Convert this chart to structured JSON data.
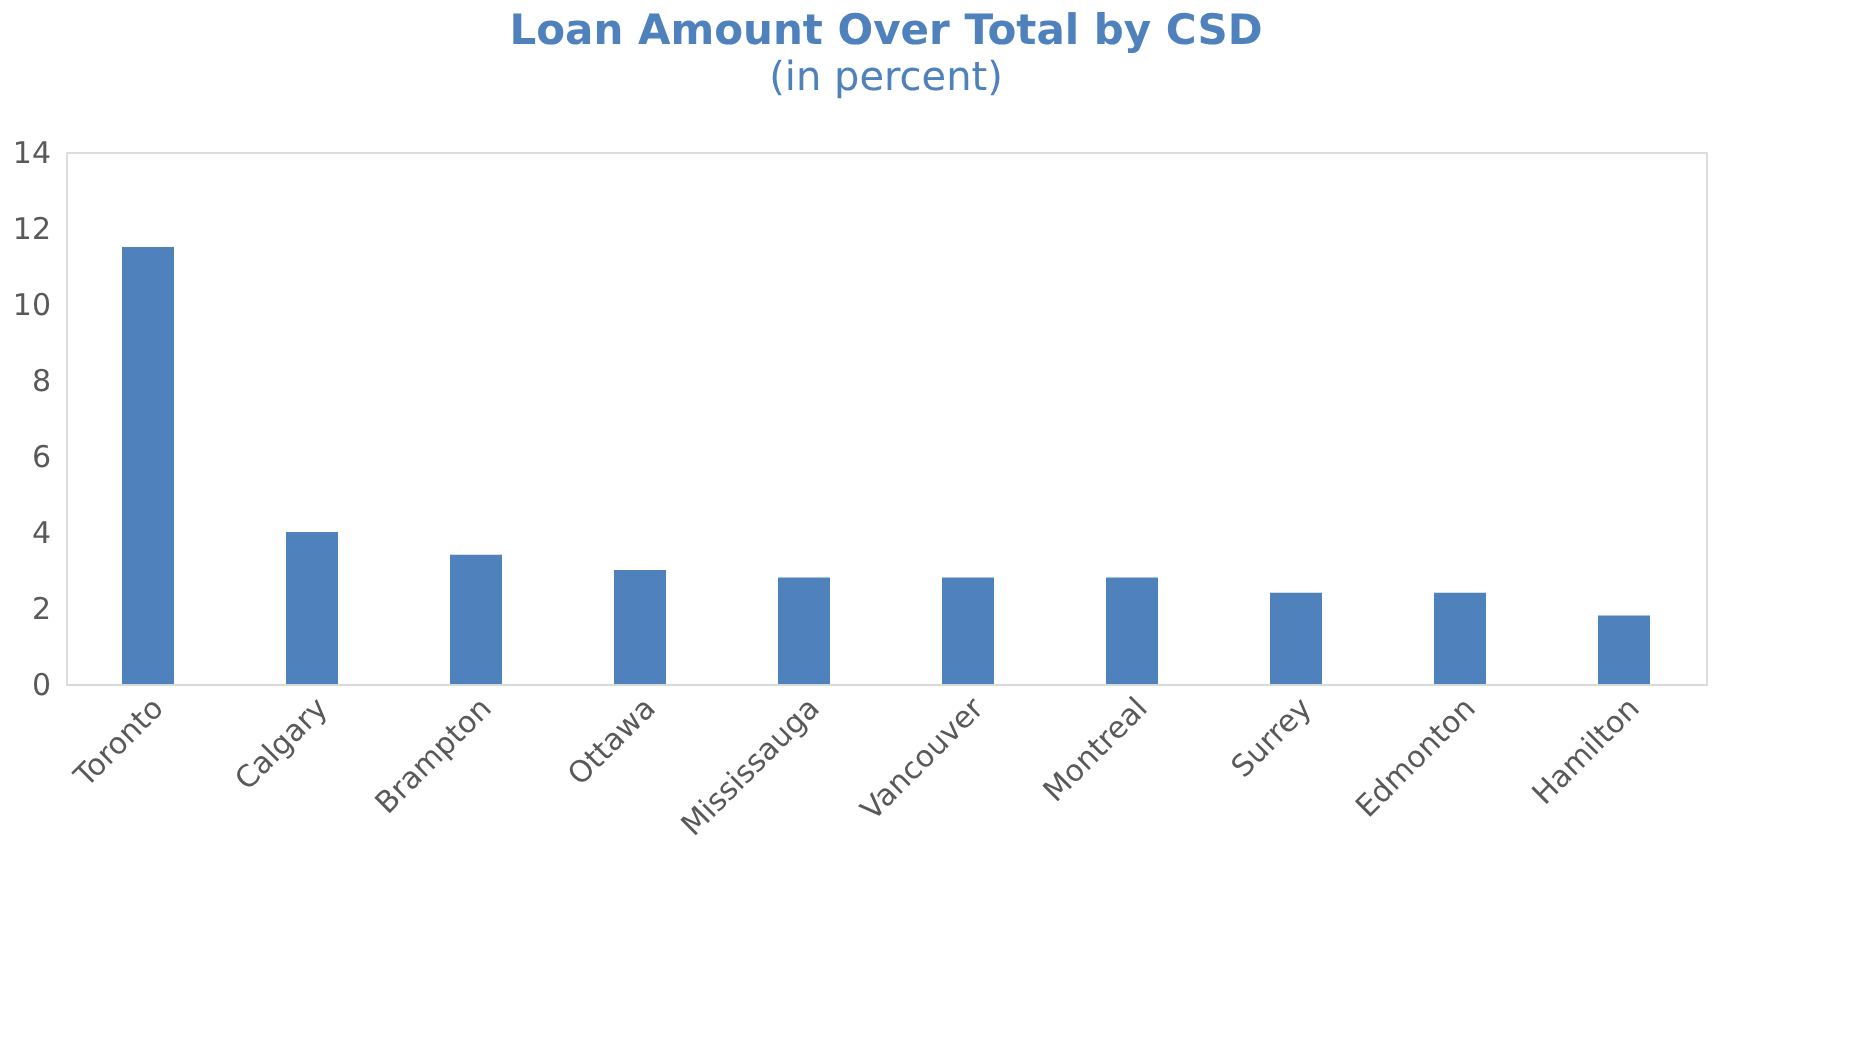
{
  "chart_data": {
    "type": "bar",
    "title": "Loan Amount Over Total by CSD",
    "subtitle": "(in percent)",
    "categories": [
      "Toronto",
      "Calgary",
      "Brampton",
      "Ottawa",
      "Mississauga",
      "Vancouver",
      "Montreal",
      "Surrey",
      "Edmonton",
      "Hamilton"
    ],
    "values": [
      11.5,
      4.0,
      3.4,
      3.0,
      2.8,
      2.8,
      2.8,
      2.4,
      2.4,
      1.8
    ],
    "color": "#4f81bd",
    "ylim": [
      0,
      14
    ],
    "yticks": [
      0,
      2,
      4,
      6,
      8,
      10,
      12,
      14
    ],
    "grid": false
  }
}
